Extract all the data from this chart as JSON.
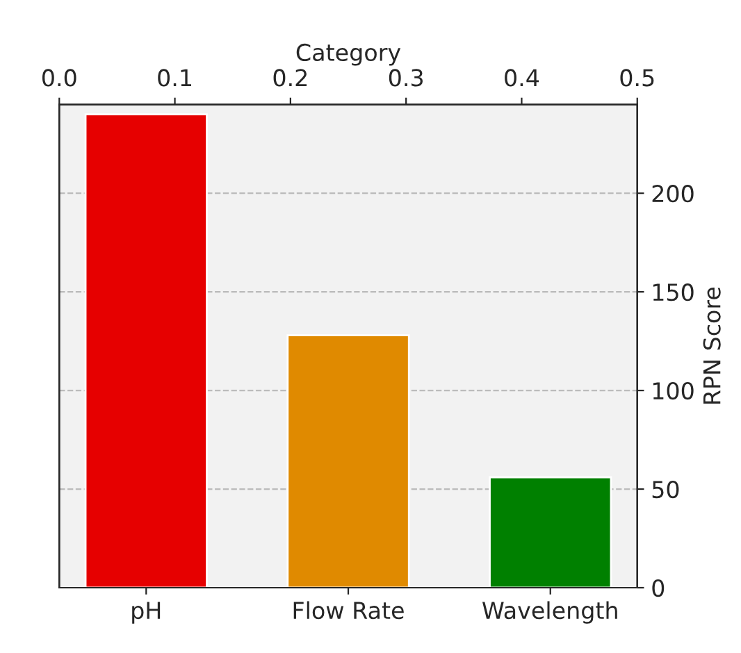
{
  "chart_data": {
    "type": "bar",
    "categories": [
      "pH",
      "Flow Rate",
      "Wavelength"
    ],
    "values": [
      240,
      128,
      56
    ],
    "colors": [
      "#e60000",
      "#e08a00",
      "#008000"
    ],
    "ylabel": "RPN Score",
    "ylim": [
      0,
      245
    ],
    "yticks": [
      0,
      50,
      100,
      150,
      200
    ],
    "x2label": "Category",
    "x2lim": [
      0.0,
      0.5
    ],
    "x2ticks": [
      {
        "value": 0.0,
        "label": "0.0"
      },
      {
        "value": 0.1,
        "label": "0.1"
      },
      {
        "value": 0.2,
        "label": "0.2"
      },
      {
        "value": 0.3,
        "label": "0.3"
      },
      {
        "value": 0.4,
        "label": "0.4"
      },
      {
        "value": 0.5,
        "label": "0.5"
      }
    ],
    "grid": true
  }
}
